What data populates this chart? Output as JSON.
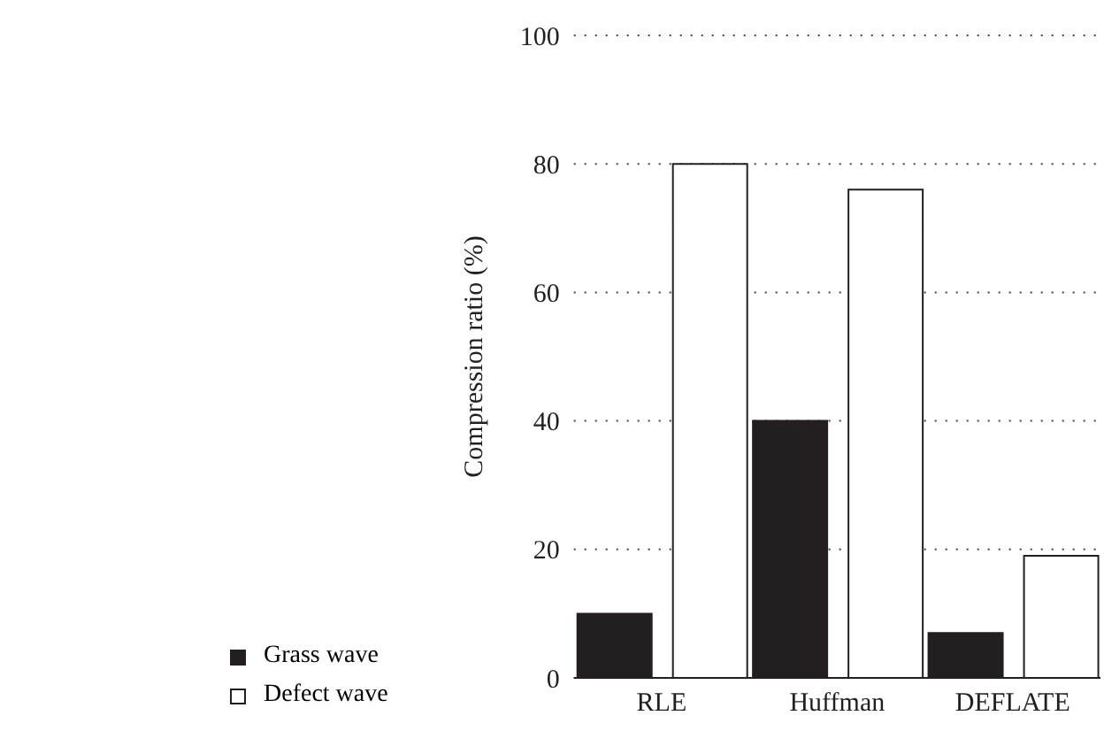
{
  "chart_data": {
    "type": "bar",
    "ylabel": "Compression ratio (%)",
    "categories": [
      "RLE",
      "Huffman",
      "DEFLATE"
    ],
    "series": [
      {
        "name": "Grass wave",
        "color": "#231f20",
        "values": [
          10,
          40,
          7
        ]
      },
      {
        "name": "Defect wave",
        "color": "#ffffff",
        "values": [
          80,
          76,
          19
        ]
      }
    ],
    "ylim": [
      0,
      100
    ],
    "yticks": [
      0,
      20,
      40,
      60,
      80,
      100
    ],
    "grid": "y",
    "legend": "bottom left"
  }
}
